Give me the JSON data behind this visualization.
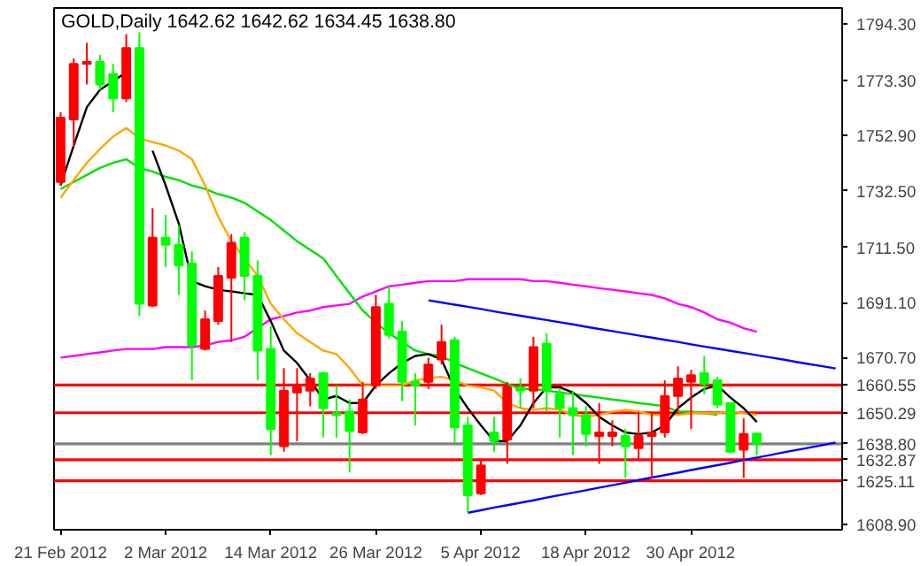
{
  "chart_data": {
    "type": "candlestick",
    "title": "GOLD,Daily  1642.62 1642.62 1634.45 1638.80",
    "categories": [
      "21 Feb 2012",
      null,
      null,
      null,
      null,
      null,
      null,
      null,
      "2 Mar 2012",
      null,
      null,
      null,
      null,
      null,
      null,
      null,
      "14 Mar 2012",
      null,
      null,
      null,
      null,
      null,
      null,
      null,
      "26 Mar 2012",
      null,
      null,
      null,
      null,
      null,
      null,
      null,
      "5 Apr 2012",
      null,
      null,
      null,
      null,
      null,
      null,
      null,
      "18 Apr 2012",
      null,
      null,
      null,
      null,
      null,
      null,
      null,
      "30 Apr 2012",
      null,
      null,
      null,
      null,
      null,
      null,
      null,
      null,
      null,
      null,
      null
    ],
    "series": [
      {
        "ohlc": [
          [
            1735.7,
            1761.5,
            1734.4,
            1759.5
          ],
          [
            1758.9,
            1781.4,
            1748.6,
            1779.4
          ],
          [
            1779.4,
            1787.2,
            1771.8,
            1780.1
          ],
          [
            1780.1,
            1782.7,
            1769.8,
            1771.8
          ],
          [
            1775.6,
            1779.4,
            1761.5,
            1766.6
          ],
          [
            1766.6,
            1790.4,
            1765.3,
            1785.3
          ],
          [
            1785.3,
            1791.1,
            1686.1,
            1690.6
          ],
          [
            1690.0,
            1726.0,
            1689.4,
            1715.1
          ],
          [
            1715.1,
            1723.5,
            1704.2,
            1712.5
          ],
          [
            1712.5,
            1719.6,
            1693.9,
            1704.8
          ],
          [
            1705.5,
            1710.0,
            1662.3,
            1675.2
          ],
          [
            1673.9,
            1688.1,
            1673.3,
            1684.9
          ],
          [
            1684.2,
            1704.2,
            1682.9,
            1700.9
          ],
          [
            1700.3,
            1716.4,
            1676.5,
            1713.2
          ],
          [
            1715.1,
            1717.1,
            1691.9,
            1700.9
          ],
          [
            1700.9,
            1706.7,
            1662.3,
            1673.3
          ],
          [
            1673.9,
            1682.3,
            1634.6,
            1644.3
          ],
          [
            1637.9,
            1666.8,
            1635.9,
            1658.5
          ],
          [
            1657.8,
            1666.8,
            1639.8,
            1659.7
          ],
          [
            1658.5,
            1664.9,
            1652.7,
            1663.0
          ],
          [
            1664.9,
            1665.5,
            1641.1,
            1652.0
          ],
          [
            1650.1,
            1660.4,
            1641.1,
            1649.5
          ],
          [
            1650.7,
            1655.2,
            1628.2,
            1643.6
          ],
          [
            1643.0,
            1661.7,
            1642.4,
            1655.2
          ],
          [
            1660.4,
            1693.9,
            1659.1,
            1689.4
          ],
          [
            1690.6,
            1697.1,
            1677.8,
            1679.1
          ],
          [
            1680.3,
            1684.2,
            1654.6,
            1661.7
          ],
          [
            1661.7,
            1664.9,
            1645.6,
            1660.4
          ],
          [
            1661.7,
            1670.7,
            1659.1,
            1668.1
          ],
          [
            1670.0,
            1682.9,
            1668.1,
            1676.5
          ],
          [
            1677.1,
            1678.4,
            1639.1,
            1644.9
          ],
          [
            1645.6,
            1648.8,
            1613.3,
            1619.8
          ],
          [
            1620.4,
            1632.7,
            1619.8,
            1630.8
          ],
          [
            1643.0,
            1648.8,
            1635.9,
            1639.8
          ],
          [
            1640.4,
            1661.7,
            1631.4,
            1659.7
          ],
          [
            1659.7,
            1663.0,
            1652.0,
            1658.5
          ],
          [
            1658.5,
            1678.4,
            1652.0,
            1674.6
          ],
          [
            1675.8,
            1679.7,
            1650.7,
            1658.5
          ],
          [
            1657.2,
            1659.1,
            1641.1,
            1652.0
          ],
          [
            1652.0,
            1658.5,
            1634.6,
            1649.5
          ],
          [
            1649.5,
            1652.7,
            1637.9,
            1642.4
          ],
          [
            1641.7,
            1653.9,
            1631.4,
            1643.0
          ],
          [
            1641.7,
            1647.5,
            1637.9,
            1643.0
          ],
          [
            1641.7,
            1644.3,
            1626.2,
            1637.9
          ],
          [
            1637.2,
            1650.7,
            1633.3,
            1641.7
          ],
          [
            1641.7,
            1650.7,
            1626.2,
            1643.0
          ],
          [
            1643.0,
            1662.3,
            1641.1,
            1656.5
          ],
          [
            1656.5,
            1667.5,
            1650.7,
            1663.0
          ],
          [
            1661.7,
            1666.2,
            1644.3,
            1664.2
          ],
          [
            1664.9,
            1671.3,
            1657.2,
            1661.0
          ],
          [
            1662.3,
            1663.6,
            1652.0,
            1653.3
          ],
          [
            1653.9,
            1653.9,
            1635.3,
            1635.9
          ],
          [
            1636.6,
            1648.2,
            1626.2,
            1642.4
          ],
          [
            1642.62,
            1642.62,
            1634.45,
            1638.8
          ],
          null,
          null,
          null,
          null,
          null,
          null
        ],
        "colors": [
          "#ff0000",
          "#ff0000",
          "#ff0000",
          "#00ff00",
          "#00ff00",
          "#ff0000",
          "#00ff00",
          "#ff0000",
          "#00ff00",
          "#00ff00",
          "#00ff00",
          "#ff0000",
          "#ff0000",
          "#ff0000",
          "#00ff00",
          "#00ff00",
          "#00ff00",
          "#ff0000",
          "#ff0000",
          "#ff0000",
          "#00ff00",
          "#00ff00",
          "#00ff00",
          "#ff0000",
          "#ff0000",
          "#00ff00",
          "#00ff00",
          "#00ff00",
          "#ff0000",
          "#ff0000",
          "#00ff00",
          "#00ff00",
          "#ff0000",
          "#00ff00",
          "#ff0000",
          "#00ff00",
          "#ff0000",
          "#00ff00",
          "#00ff00",
          "#00ff00",
          "#00ff00",
          "#ff0000",
          "#ff0000",
          "#00ff00",
          "#ff0000",
          "#ff0000",
          "#ff0000",
          "#ff0000",
          "#ff0000",
          "#00ff00",
          "#00ff00",
          "#00ff00",
          "#ff0000",
          "#00ff00",
          null,
          null,
          null,
          null,
          null,
          null
        ]
      },
      {
        "type": "line",
        "color": "#ff00ff",
        "values": [
          1670.7,
          1671.3,
          1672.0,
          1672.6,
          1673.3,
          1673.9,
          1673.9,
          1673.9,
          1674.6,
          1674.6,
          1674.6,
          1675.2,
          1676.5,
          1677.1,
          1678.4,
          1681.6,
          1684.9,
          1686.1,
          1687.4,
          1688.1,
          1689.4,
          1690.0,
          1690.6,
          1693.3,
          1695.2,
          1697.1,
          1697.7,
          1698.4,
          1699.0,
          1699.0,
          1699.0,
          1699.7,
          1699.7,
          1699.7,
          1699.7,
          1699.7,
          1699.0,
          1699.0,
          1698.4,
          1697.7,
          1697.1,
          1696.4,
          1695.8,
          1695.2,
          1694.5,
          1693.9,
          1692.6,
          1690.6,
          1689.4,
          1687.4,
          1684.9,
          1683.6,
          1681.6,
          1680.3,
          null,
          null,
          null,
          null,
          null,
          null
        ]
      },
      {
        "type": "line",
        "color": "#00e000",
        "values": [
          1733.1,
          1735.7,
          1738.3,
          1740.9,
          1742.8,
          1744.1,
          1740.9,
          1739.6,
          1737.6,
          1736.4,
          1734.4,
          1733.1,
          1731.2,
          1729.9,
          1728.0,
          1724.8,
          1721.6,
          1717.7,
          1713.8,
          1710.6,
          1707.4,
          1700.9,
          1694.5,
          1688.1,
          1683.6,
          1679.7,
          1676.5,
          1673.3,
          1672.0,
          1671.3,
          1668.7,
          1666.8,
          1664.9,
          1663.0,
          1661.0,
          1659.1,
          1659.1,
          1658.5,
          1657.8,
          1657.2,
          1656.5,
          1655.9,
          1655.2,
          1654.6,
          1653.9,
          1653.3,
          1652.7,
          1650.7,
          1650.7,
          1650.1,
          1649.5,
          null,
          null,
          null,
          null,
          null,
          null,
          null,
          null,
          null
        ]
      },
      {
        "type": "line",
        "color": "#ffa500",
        "values": [
          1729.9,
          1736.4,
          1742.8,
          1747.9,
          1752.5,
          1755.7,
          1751.8,
          1750.5,
          1749.2,
          1747.3,
          1744.1,
          1734.4,
          1722.8,
          1713.8,
          1707.4,
          1700.9,
          1690.6,
          1684.9,
          1679.7,
          1676.5,
          1673.3,
          1672.0,
          1666.8,
          1660.4,
          1660.4,
          1660.4,
          1660.4,
          1662.3,
          1663.0,
          1663.6,
          1662.3,
          1660.4,
          1659.7,
          1658.5,
          1653.9,
          1652.0,
          1651.4,
          1652.0,
          1651.4,
          1649.5,
          1648.8,
          1649.5,
          1650.7,
          1651.4,
          1650.7,
          1649.5,
          1649.5,
          1649.5,
          1650.1,
          1650.1,
          1650.1,
          1650.7,
          1650.1,
          1649.5,
          null,
          null,
          null,
          null,
          null,
          null
        ]
      },
      {
        "type": "line",
        "color": "#000000",
        "values": [
          1734.4,
          1749.2,
          1763.4,
          1769.8,
          1773.0,
          1776.3,
          null,
          1747.3,
          1734.4,
          1720.3,
          1699.0,
          1697.1,
          1695.8,
          1695.2,
          1694.5,
          1693.9,
          1684.2,
          1673.3,
          1668.7,
          1662.3,
          1655.2,
          1656.5,
          1653.9,
          1653.9,
          1660.4,
          1664.9,
          1668.7,
          1671.3,
          1672.0,
          1670.0,
          1659.1,
          1652.0,
          1645.6,
          1639.8,
          1639.8,
          1645.6,
          1653.9,
          1659.7,
          1659.7,
          1657.8,
          1653.9,
          1648.8,
          1645.6,
          1643.0,
          1642.4,
          1643.0,
          1645.6,
          1652.0,
          1655.9,
          1659.1,
          1660.4,
          1655.9,
          1652.0,
          1646.9,
          null,
          null,
          null,
          null,
          null,
          null
        ]
      },
      {
        "type": "line",
        "color": "#0000ff",
        "values": [
          null,
          null,
          null,
          null,
          null,
          null,
          null,
          null,
          null,
          null,
          null,
          null,
          null,
          null,
          null,
          null,
          null,
          null,
          null,
          null,
          null,
          null,
          null,
          null,
          null,
          null,
          null,
          null,
          1691.9,
          1691.1,
          1690.3,
          1689.5,
          1688.7,
          1687.8,
          1687.0,
          1686.2,
          1685.4,
          1684.6,
          1683.8,
          1683.0,
          1682.1,
          1681.3,
          1680.5,
          1679.7,
          1678.9,
          1678.1,
          1677.3,
          1676.5,
          1675.6,
          1674.8,
          1674.0,
          1673.2,
          1672.4,
          1671.6,
          1670.8,
          1670.0,
          1669.1,
          1668.3,
          1667.5,
          1666.7
        ]
      },
      {
        "type": "line",
        "color": "#0000ff",
        "values": [
          null,
          null,
          null,
          null,
          null,
          null,
          null,
          null,
          null,
          null,
          null,
          null,
          null,
          null,
          null,
          null,
          null,
          null,
          null,
          null,
          null,
          null,
          null,
          null,
          null,
          null,
          null,
          null,
          null,
          null,
          null,
          1613.3,
          1614.2,
          1615.2,
          1616.1,
          1617.0,
          1617.9,
          1618.9,
          1619.8,
          1620.7,
          1621.6,
          1622.6,
          1623.5,
          1624.4,
          1625.4,
          1626.3,
          1627.2,
          1628.1,
          1629.1,
          1630.0,
          1630.9,
          1631.8,
          1632.8,
          1633.7,
          1634.6,
          1635.6,
          1636.5,
          1637.4,
          1638.3,
          1639.3
        ]
      }
    ],
    "ylim": [
      1607.0,
      1800.1
    ],
    "yticks": [
      {
        "value": 1608.9,
        "label": "1608.90"
      },
      {
        "value": 1670.7,
        "label": "1670.70"
      },
      {
        "value": 1691.1,
        "label": "1691.10"
      },
      {
        "value": 1711.5,
        "label": "1711.50"
      },
      {
        "value": 1732.5,
        "label": "1732.50"
      },
      {
        "value": 1752.9,
        "label": "1752.90"
      },
      {
        "value": 1773.3,
        "label": "1773.30"
      },
      {
        "value": 1794.3,
        "label": "1794.30"
      }
    ],
    "ref_lines": [
      {
        "axis": "y",
        "value": 1660.55,
        "label": "1660.55",
        "color": "#ff0000"
      },
      {
        "axis": "y",
        "value": 1650.29,
        "label": "1650.29",
        "color": "#ff0000"
      },
      {
        "axis": "y",
        "value": 1638.8,
        "label": "1638.80",
        "color": "#808080"
      },
      {
        "axis": "y",
        "value": 1632.87,
        "label": "1632.87",
        "color": "#ff0000"
      },
      {
        "axis": "y",
        "value": 1625.11,
        "label": "1625.11",
        "color": "#ff0000"
      }
    ],
    "grid": false
  }
}
